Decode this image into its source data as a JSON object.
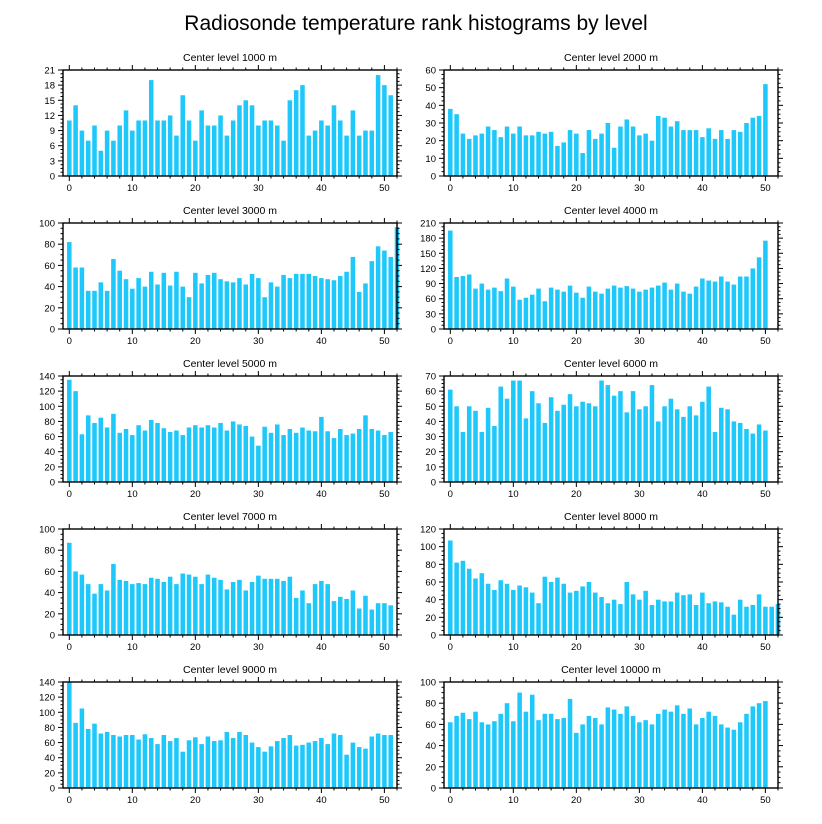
{
  "title": "Radiosonde temperature rank histograms by level",
  "colors": {
    "bar": "#1ec8fa",
    "axis": "#000000"
  },
  "chart_data": [
    {
      "type": "bar",
      "title": "Center level 1000 m",
      "xlim": [
        -1,
        52
      ],
      "xticks": [
        0,
        10,
        20,
        30,
        40,
        50
      ],
      "ylim": [
        0,
        21
      ],
      "yticks": [
        0,
        3,
        6,
        9,
        12,
        15,
        18,
        21
      ],
      "values": [
        11,
        14,
        9,
        7,
        10,
        5,
        9,
        7,
        10,
        13,
        9,
        11,
        11,
        19,
        11,
        11,
        12,
        8,
        16,
        11,
        7,
        13,
        10,
        10,
        12,
        8,
        11,
        14,
        15,
        14,
        10,
        11,
        11,
        10,
        7,
        15,
        17,
        18,
        8,
        9,
        11,
        10,
        14,
        11,
        8,
        13,
        8,
        9,
        9,
        20,
        18,
        16
      ]
    },
    {
      "type": "bar",
      "title": "Center level 2000 m",
      "xlim": [
        -1,
        52
      ],
      "xticks": [
        0,
        10,
        20,
        30,
        40,
        50
      ],
      "ylim": [
        0,
        60
      ],
      "yticks": [
        0,
        10,
        20,
        30,
        40,
        50,
        60
      ],
      "values": [
        38,
        35,
        24,
        21,
        23,
        24,
        28,
        26,
        22,
        28,
        24,
        28,
        23,
        23,
        25,
        24,
        25,
        17,
        19,
        26,
        24,
        13,
        26,
        21,
        24,
        30,
        16,
        28,
        32,
        28,
        23,
        24,
        20,
        34,
        33,
        28,
        31,
        26,
        26,
        26,
        22,
        27,
        21,
        26,
        21,
        26,
        25,
        30,
        33,
        34,
        52
      ]
    },
    {
      "type": "bar",
      "title": "Center level 3000 m",
      "xlim": [
        -1,
        52
      ],
      "xticks": [
        0,
        10,
        20,
        30,
        40,
        50
      ],
      "ylim": [
        0,
        100
      ],
      "yticks": [
        0,
        20,
        40,
        60,
        80,
        100
      ],
      "values": [
        82,
        58,
        58,
        36,
        36,
        44,
        36,
        66,
        55,
        47,
        38,
        48,
        40,
        54,
        42,
        53,
        41,
        54,
        40,
        30,
        53,
        43,
        51,
        53,
        47,
        45,
        44,
        48,
        42,
        52,
        48,
        30,
        44,
        40,
        51,
        48,
        52,
        52,
        52,
        50,
        48,
        47,
        46,
        50,
        54,
        68,
        35,
        43,
        64,
        78,
        74,
        68,
        96
      ]
    },
    {
      "type": "bar",
      "title": "Center level 4000 m",
      "xlim": [
        -1,
        52
      ],
      "xticks": [
        0,
        10,
        20,
        30,
        40,
        50
      ],
      "ylim": [
        0,
        210
      ],
      "yticks": [
        0,
        30,
        60,
        90,
        120,
        150,
        180,
        210
      ],
      "values": [
        195,
        103,
        105,
        108,
        80,
        90,
        78,
        82,
        75,
        100,
        84,
        58,
        62,
        68,
        80,
        55,
        82,
        78,
        74,
        86,
        72,
        62,
        84,
        74,
        70,
        80,
        86,
        82,
        85,
        80,
        74,
        78,
        82,
        86,
        92,
        78,
        90,
        74,
        70,
        84,
        100,
        96,
        94,
        104,
        94,
        88,
        104,
        104,
        120,
        142,
        175
      ]
    },
    {
      "type": "bar",
      "title": "Center level 5000 m",
      "xlim": [
        -1,
        52
      ],
      "xticks": [
        0,
        10,
        20,
        30,
        40,
        50
      ],
      "ylim": [
        0,
        140
      ],
      "yticks": [
        0,
        20,
        40,
        60,
        80,
        100,
        120,
        140
      ],
      "values": [
        135,
        120,
        63,
        88,
        78,
        85,
        72,
        90,
        65,
        70,
        62,
        75,
        68,
        82,
        78,
        71,
        66,
        68,
        62,
        72,
        75,
        72,
        75,
        72,
        78,
        68,
        80,
        76,
        74,
        60,
        48,
        73,
        65,
        76,
        62,
        70,
        65,
        72,
        68,
        67,
        86,
        67,
        58,
        70,
        62,
        64,
        70,
        88,
        70,
        68,
        62,
        66
      ]
    },
    {
      "type": "bar",
      "title": "Center level 6000 m",
      "xlim": [
        -1,
        52
      ],
      "xticks": [
        0,
        10,
        20,
        30,
        40,
        50
      ],
      "ylim": [
        0,
        70
      ],
      "yticks": [
        0,
        10,
        20,
        30,
        40,
        50,
        60,
        70
      ],
      "values": [
        61,
        50,
        33,
        50,
        47,
        33,
        49,
        37,
        63,
        55,
        67,
        67,
        42,
        60,
        52,
        39,
        56,
        47,
        51,
        58,
        50,
        53,
        52,
        50,
        67,
        64,
        57,
        60,
        46,
        60,
        48,
        50,
        64,
        40,
        50,
        55,
        48,
        43,
        50,
        44,
        53,
        63,
        33,
        49,
        48,
        40,
        39,
        35,
        32,
        38,
        34
      ]
    },
    {
      "type": "bar",
      "title": "Center level 7000 m",
      "xlim": [
        -1,
        52
      ],
      "xticks": [
        0,
        10,
        20,
        30,
        40,
        50
      ],
      "ylim": [
        0,
        100
      ],
      "yticks": [
        0,
        20,
        40,
        60,
        80,
        100
      ],
      "values": [
        87,
        60,
        57,
        48,
        39,
        48,
        42,
        67,
        52,
        51,
        48,
        49,
        48,
        54,
        53,
        50,
        55,
        48,
        58,
        57,
        55,
        48,
        57,
        54,
        52,
        43,
        50,
        52,
        42,
        50,
        56,
        53,
        53,
        53,
        51,
        55,
        35,
        42,
        30,
        48,
        51,
        48,
        32,
        36,
        34,
        42,
        25,
        37,
        24,
        30,
        30,
        28
      ]
    },
    {
      "type": "bar",
      "title": "Center level 8000 m",
      "xlim": [
        -1,
        52
      ],
      "xticks": [
        0,
        10,
        20,
        30,
        40,
        50
      ],
      "ylim": [
        0,
        120
      ],
      "yticks": [
        0,
        20,
        40,
        60,
        80,
        100,
        120
      ],
      "values": [
        107,
        82,
        84,
        75,
        64,
        70,
        58,
        51,
        62,
        58,
        51,
        56,
        54,
        48,
        36,
        66,
        60,
        65,
        58,
        48,
        50,
        55,
        60,
        48,
        43,
        36,
        40,
        35,
        60,
        46,
        40,
        50,
        34,
        40,
        38,
        38,
        48,
        45,
        46,
        34,
        48,
        36,
        38,
        37,
        32,
        23,
        40,
        32,
        34,
        46,
        32,
        32,
        35
      ]
    },
    {
      "type": "bar",
      "title": "Center level 9000 m",
      "xlim": [
        -1,
        52
      ],
      "xticks": [
        0,
        10,
        20,
        30,
        40,
        50
      ],
      "ylim": [
        0,
        140
      ],
      "yticks": [
        0,
        20,
        40,
        60,
        80,
        100,
        120,
        140
      ],
      "values": [
        140,
        86,
        105,
        78,
        85,
        72,
        74,
        70,
        68,
        70,
        70,
        64,
        71,
        66,
        58,
        70,
        62,
        66,
        48,
        63,
        67,
        58,
        68,
        62,
        63,
        74,
        66,
        74,
        70,
        60,
        54,
        48,
        55,
        62,
        66,
        70,
        56,
        57,
        60,
        62,
        66,
        58,
        72,
        70,
        44,
        60,
        54,
        52,
        68,
        72,
        70,
        70
      ]
    },
    {
      "type": "bar",
      "title": "Center level 10000 m",
      "xlim": [
        -1,
        52
      ],
      "xticks": [
        0,
        10,
        20,
        30,
        40,
        50
      ],
      "ylim": [
        0,
        100
      ],
      "yticks": [
        0,
        20,
        40,
        60,
        80,
        100
      ],
      "values": [
        62,
        68,
        71,
        65,
        72,
        62,
        60,
        63,
        70,
        80,
        63,
        90,
        72,
        88,
        64,
        70,
        70,
        65,
        66,
        84,
        52,
        60,
        68,
        66,
        60,
        76,
        74,
        70,
        77,
        68,
        62,
        64,
        60,
        70,
        74,
        72,
        78,
        70,
        75,
        60,
        66,
        72,
        68,
        60,
        57,
        55,
        62,
        70,
        77,
        80,
        82
      ]
    }
  ]
}
